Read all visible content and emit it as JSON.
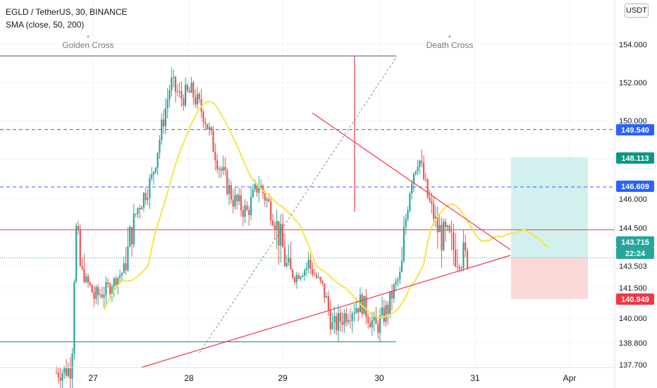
{
  "legend": {
    "symbol": "EGLD / TetherUS, 30, BINANCE",
    "indicator": "SMA (close, 50, 200)"
  },
  "currency_button": "USDT",
  "chart_data": {
    "type": "candlestick",
    "y_ticks": [
      "154.000",
      "152.000",
      "150.000",
      "148.000",
      "146.000",
      "144.500",
      "143.503",
      "141.500",
      "140.000",
      "138.800",
      "137.700"
    ],
    "x_ticks": [
      "27",
      "28",
      "29",
      "30",
      "31",
      "Apr"
    ],
    "price_tags": [
      {
        "label": "149.540",
        "color": "#2962ff"
      },
      {
        "label": "148.113",
        "color": "#089981"
      },
      {
        "label": "146.609",
        "color": "#2962ff"
      },
      {
        "label": "143.715",
        "color": "#26a69a"
      },
      {
        "label": "22:24",
        "color": "#26a69a"
      },
      {
        "label": "140.949",
        "color": "#f23645"
      }
    ],
    "annotations": [
      {
        "text": "Golden Cross"
      },
      {
        "text": "Death Cross"
      }
    ],
    "horizontal_lines": [
      {
        "price": 153.4,
        "color": "#555555",
        "style": "solid"
      },
      {
        "price": 149.54,
        "color": "#2962ff",
        "style": "dashed"
      },
      {
        "price": 146.609,
        "color": "#2962ff",
        "style": "dashed"
      },
      {
        "price": 144.45,
        "color": "#f23645",
        "style": "solid"
      },
      {
        "price": 143.715,
        "color": "#26a69a",
        "style": "dotted"
      },
      {
        "price": 138.85,
        "color": "#089981",
        "style": "solid"
      }
    ],
    "colors": {
      "up": "#26a69a",
      "down": "#ef5350",
      "sma": "#f5e642",
      "trend": "#f23645",
      "grid": "#f0f3fa"
    },
    "position_tool": {
      "entry": 143.7,
      "target": 148.113,
      "stop": 140.949
    }
  }
}
